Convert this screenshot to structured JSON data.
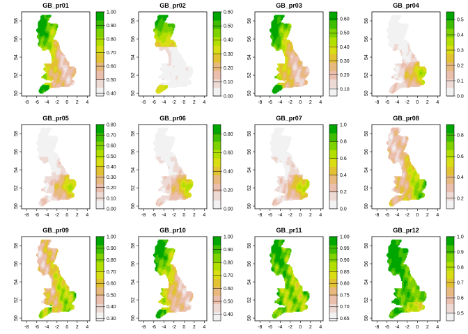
{
  "chart_data": [
    {
      "type": "heatmap",
      "title": "GB_pr01",
      "x_ticks": [
        "-8",
        "-6",
        "-4",
        "-2",
        "0",
        "2",
        "4"
      ],
      "y_ticks": [
        "50",
        "52",
        "54",
        "56",
        "58"
      ],
      "legend_ticks": [
        "0.40",
        "0.50",
        "0.60",
        "0.70",
        "0.80",
        "0.90",
        "1.00"
      ],
      "legend_range": [
        0.38,
        1.0
      ],
      "pattern": "high-north"
    },
    {
      "type": "heatmap",
      "title": "GB_pr02",
      "x_ticks": [
        "-8",
        "-6",
        "-4",
        "-2",
        "0",
        "2",
        "4"
      ],
      "y_ticks": [
        "50",
        "52",
        "54",
        "56",
        "58"
      ],
      "legend_ticks": [
        "0.00",
        "0.10",
        "0.20",
        "0.30",
        "0.40",
        "0.50",
        "0.60"
      ],
      "legend_range": [
        0.0,
        0.6
      ],
      "pattern": "north-only"
    },
    {
      "type": "heatmap",
      "title": "GB_pr03",
      "x_ticks": [
        "-8",
        "-6",
        "-4",
        "-2",
        "0",
        "2",
        "4"
      ],
      "y_ticks": [
        "50",
        "52",
        "54",
        "56",
        "58"
      ],
      "legend_ticks": [
        "0.10",
        "0.20",
        "0.30",
        "0.40",
        "0.50",
        "0.60"
      ],
      "legend_range": [
        0.05,
        0.65
      ],
      "pattern": "high-north"
    },
    {
      "type": "heatmap",
      "title": "GB_pr04",
      "x_ticks": [
        "-8",
        "-6",
        "-4",
        "-2",
        "0",
        "2",
        "4"
      ],
      "y_ticks": [
        "50",
        "52",
        "54",
        "56",
        "58"
      ],
      "legend_ticks": [
        "0.0",
        "0.1",
        "0.2",
        "0.3",
        "0.4",
        "0.5"
      ],
      "legend_range": [
        0.0,
        0.55
      ],
      "pattern": "southeast"
    },
    {
      "type": "heatmap",
      "title": "GB_pr05",
      "x_ticks": [
        "-8",
        "-6",
        "-4",
        "-2",
        "0",
        "2",
        "4"
      ],
      "y_ticks": [
        "50",
        "52",
        "54",
        "56",
        "58"
      ],
      "legend_ticks": [
        "0.00",
        "0.10",
        "0.20",
        "0.30",
        "0.40",
        "0.50",
        "0.60",
        "0.70",
        "0.80"
      ],
      "legend_range": [
        0.0,
        0.8
      ],
      "pattern": "southeast"
    },
    {
      "type": "heatmap",
      "title": "GB_pr06",
      "x_ticks": [
        "-8",
        "-6",
        "-4",
        "-2",
        "0",
        "2",
        "4"
      ],
      "y_ticks": [
        "50",
        "52",
        "54",
        "56",
        "58"
      ],
      "legend_ticks": [
        "0.00",
        "0.20",
        "0.40",
        "0.60",
        "0.80"
      ],
      "legend_range": [
        0.0,
        0.9
      ],
      "pattern": "southeast"
    },
    {
      "type": "heatmap",
      "title": "GB_pr07",
      "x_ticks": [
        "-8",
        "-6",
        "-4",
        "-2",
        "0",
        "2",
        "4"
      ],
      "y_ticks": [
        "50",
        "52",
        "54",
        "56",
        "58"
      ],
      "legend_ticks": [
        "0.0",
        "0.2",
        "0.4",
        "0.6",
        "0.8",
        "1.0"
      ],
      "legend_range": [
        0.0,
        1.0
      ],
      "pattern": "southeast"
    },
    {
      "type": "heatmap",
      "title": "GB_pr08",
      "x_ticks": [
        "-8",
        "-6",
        "-4",
        "-2",
        "0",
        "2",
        "4"
      ],
      "y_ticks": [
        "50",
        "52",
        "54",
        "56",
        "58"
      ],
      "legend_ticks": [
        "0.2",
        "0.4",
        "0.6",
        "0.8"
      ],
      "legend_range": [
        0.1,
        0.9
      ],
      "pattern": "high-east"
    },
    {
      "type": "heatmap",
      "title": "GB_pr09",
      "x_ticks": [
        "-8",
        "-6",
        "-4",
        "-2",
        "0",
        "2",
        "4"
      ],
      "y_ticks": [
        "50",
        "52",
        "54",
        "56",
        "58"
      ],
      "legend_ticks": [
        "0.30",
        "0.40",
        "0.50",
        "0.60",
        "0.70",
        "0.80",
        "0.90",
        "1.00"
      ],
      "legend_range": [
        0.28,
        1.0
      ],
      "pattern": "mixed"
    },
    {
      "type": "heatmap",
      "title": "GB_pr10",
      "x_ticks": [
        "-8",
        "-6",
        "-4",
        "-2",
        "0",
        "2",
        "4"
      ],
      "y_ticks": [
        "50",
        "52",
        "54",
        "56",
        "58"
      ],
      "legend_ticks": [
        "0.40",
        "0.50",
        "0.60",
        "0.70",
        "0.80",
        "0.90",
        "1.00"
      ],
      "legend_range": [
        0.35,
        1.0
      ],
      "pattern": "high-north"
    },
    {
      "type": "heatmap",
      "title": "GB_pr11",
      "x_ticks": [
        "-8",
        "-6",
        "-4",
        "-2",
        "0",
        "2",
        "4"
      ],
      "y_ticks": [
        "50",
        "52",
        "54",
        "56",
        "58"
      ],
      "legend_ticks": [
        "0.65",
        "0.70",
        "0.75",
        "0.80",
        "0.85",
        "0.90",
        "0.95",
        "1.00"
      ],
      "legend_range": [
        0.64,
        1.0
      ],
      "pattern": "mostly-high"
    },
    {
      "type": "heatmap",
      "title": "GB_pr12",
      "x_ticks": [
        "-8",
        "-6",
        "-4",
        "-2",
        "0",
        "2",
        "4"
      ],
      "y_ticks": [
        "50",
        "52",
        "54",
        "56",
        "58"
      ],
      "legend_ticks": [
        "0.5",
        "0.6",
        "0.7",
        "0.8",
        "0.9",
        "1.0"
      ],
      "legend_range": [
        0.45,
        1.0
      ],
      "pattern": "almost-all-high"
    }
  ],
  "colors": {
    "palette": [
      "#f2f2f2",
      "#eedad5",
      "#ebbfae",
      "#e8b97e",
      "#e2c132",
      "#d8dd15",
      "#b3df00",
      "#7fd100",
      "#3fbd00",
      "#00a600"
    ],
    "axis": "#000000"
  }
}
